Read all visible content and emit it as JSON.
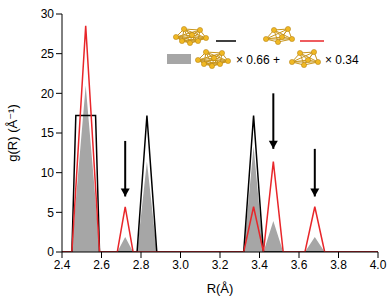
{
  "chart_data": {
    "type": "line",
    "x": [
      2.4,
      2.45,
      2.47,
      2.52,
      2.57,
      2.59,
      2.68,
      2.72,
      2.76,
      2.78,
      2.83,
      2.88,
      3.32,
      3.37,
      3.42,
      3.47,
      3.52,
      3.63,
      3.68,
      3.73,
      4.0
    ],
    "series": [
      {
        "color": "#000000",
        "values": [
          0,
          0,
          17.2,
          17.2,
          17.2,
          0,
          0,
          0,
          0,
          0,
          17.2,
          0,
          0,
          17.2,
          0,
          0,
          0,
          0,
          0,
          0,
          0
        ]
      },
      {
        "color": "#e8262a",
        "values": [
          0,
          0,
          8.1,
          28.5,
          8.1,
          0,
          0,
          5.7,
          0,
          0,
          0,
          0,
          0,
          5.7,
          0,
          11.4,
          0,
          0,
          5.7,
          0,
          0
        ]
      },
      {
        "type": "area",
        "color": "#a6a6a6",
        "values": [
          0,
          0,
          6.5,
          21,
          6.5,
          0,
          0,
          1.9,
          0,
          0,
          11.4,
          0,
          0,
          13.3,
          0,
          3.9,
          0,
          0,
          1.9,
          0,
          0
        ]
      }
    ],
    "x_label": "R(Å)",
    "y_label": "g(R) (Å⁻¹)",
    "xlim": [
      2.4,
      4.0
    ],
    "xticks": [
      2.4,
      2.6,
      2.8,
      {
        "value": 3,
        "label": "3.0"
      },
      3.2,
      3.4,
      3.6,
      3.8,
      {
        "value": 4,
        "label": "4.0"
      }
    ],
    "ylim": [
      0,
      30
    ],
    "yticks": [
      0,
      5,
      10,
      15,
      20,
      25,
      30
    ],
    "annotations": [
      "× 0.66 +",
      "× 0.34"
    ],
    "arrows": [
      {
        "x": 2.72,
        "y_from": 14,
        "y_to": 7
      },
      {
        "x": 3.47,
        "y_from": 20,
        "y_to": 13
      },
      {
        "x": 3.68,
        "y_from": 13,
        "y_to": 7
      }
    ]
  }
}
